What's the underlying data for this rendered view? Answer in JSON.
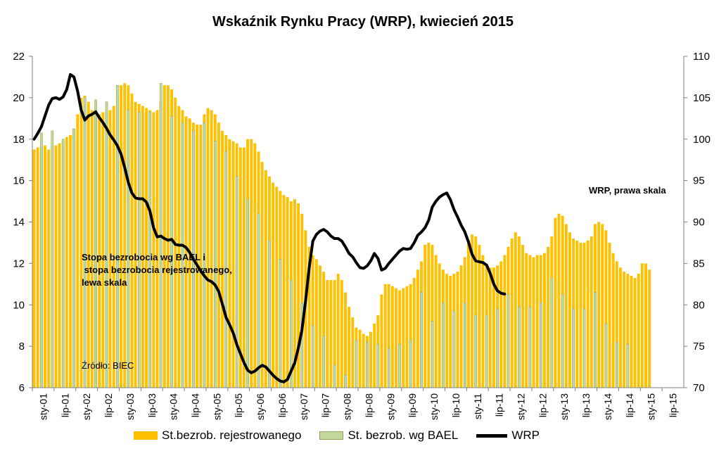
{
  "chart_data": {
    "type": "bar",
    "title": "Wskaźnik Rynku Pracy (WRP), kwiecień 2015",
    "x_tick_labels": [
      "sty-01",
      "lip-01",
      "sty-02",
      "lip-02",
      "sty-03",
      "lip-03",
      "sty-04",
      "lip-04",
      "sty-05",
      "lip-05",
      "sty-06",
      "lip-06",
      "sty-07",
      "lip-07",
      "sty-08",
      "lip-08",
      "sty-09",
      "lip-09",
      "sty-10",
      "lip-10",
      "sty-11",
      "lip-11",
      "sty-12",
      "lip-12",
      "sty-13",
      "lip-13",
      "sty-14",
      "lip-14",
      "sty-15",
      "lip-15"
    ],
    "y_left": {
      "min": 6,
      "max": 22,
      "ticks": [
        6,
        8,
        10,
        12,
        14,
        16,
        18,
        20,
        22
      ]
    },
    "y_right": {
      "min": 70,
      "max": 110,
      "ticks": [
        70,
        75,
        80,
        85,
        90,
        95,
        100,
        105,
        110
      ]
    },
    "series": [
      {
        "name": "St.bezrob. rejestrowanego",
        "kind": "bar",
        "axis": "left",
        "color": "#FFC000",
        "frequency": "monthly",
        "start": "sty-01",
        "values": [
          17.5,
          17.6,
          17.7,
          17.7,
          17.5,
          17.6,
          17.7,
          17.8,
          17.9,
          18.1,
          18.2,
          18.5,
          19.2,
          20.0,
          20.1,
          19.8,
          19.4,
          19.2,
          19.2,
          19.3,
          19.3,
          19.4,
          19.6,
          20.0,
          20.6,
          20.7,
          20.6,
          20.2,
          19.8,
          19.7,
          19.6,
          19.5,
          19.4,
          19.3,
          19.4,
          19.8,
          20.6,
          20.6,
          20.4,
          20.0,
          19.6,
          19.4,
          19.1,
          19.0,
          18.8,
          18.7,
          18.7,
          19.2,
          19.5,
          19.4,
          19.2,
          18.8,
          18.4,
          18.2,
          18.0,
          17.9,
          17.8,
          17.6,
          17.6,
          18.0,
          18.0,
          17.8,
          17.4,
          16.9,
          16.5,
          16.2,
          15.9,
          15.7,
          15.5,
          15.3,
          15.2,
          15.0,
          15.1,
          14.9,
          14.4,
          13.6,
          12.8,
          12.4,
          12.2,
          11.9,
          11.6,
          11.2,
          11.2,
          11.2,
          11.5,
          11.2,
          10.6,
          9.9,
          9.4,
          8.9,
          8.8,
          8.6,
          8.5,
          8.7,
          9.1,
          9.5,
          10.5,
          11.0,
          11.0,
          10.9,
          10.8,
          10.7,
          10.8,
          10.9,
          11.0,
          11.3,
          11.7,
          12.1,
          12.9,
          13.0,
          12.9,
          12.4,
          12.0,
          11.7,
          11.5,
          11.4,
          11.5,
          11.6,
          11.9,
          12.3,
          13.1,
          13.4,
          13.3,
          12.9,
          12.4,
          12.0,
          11.8,
          11.8,
          11.9,
          12.1,
          12.4,
          12.8,
          13.2,
          13.5,
          13.3,
          12.9,
          12.5,
          12.4,
          12.3,
          12.4,
          12.4,
          12.5,
          12.8,
          13.3,
          14.2,
          14.4,
          14.3,
          13.9,
          13.5,
          13.2,
          13.1,
          13.0,
          13.0,
          13.1,
          13.3,
          13.9,
          14.0,
          13.9,
          13.6,
          13.0,
          12.5,
          12.1,
          11.8,
          11.6,
          11.5,
          11.4,
          11.3,
          11.5,
          12.0,
          12.0,
          11.7
        ]
      },
      {
        "name": "St. bezrob. wg BAEL",
        "kind": "bar",
        "axis": "left",
        "color": "#C3D69B",
        "frequency": "quarterly",
        "start": "sty-01",
        "values": [
          18.3,
          18.4,
          18.0,
          18.5,
          20.0,
          19.9,
          19.8,
          20.6,
          19.4,
          19.3,
          19.3,
          20.7,
          19.1,
          18.8,
          18.4,
          18.8,
          17.9,
          17.4,
          16.2,
          15.1,
          14.4,
          13.1,
          12.2,
          11.2,
          10.1,
          9.0,
          8.5,
          7.1,
          6.6,
          8.3,
          8.2,
          8.1,
          7.9,
          8.1,
          8.3,
          10.6,
          9.2,
          10.1,
          9.7,
          10.1,
          9.5,
          9.5,
          9.8,
          10.5,
          9.9,
          9.9,
          10.1,
          11.3,
          10.5,
          9.8,
          9.8,
          10.6,
          9.1,
          8.2,
          8.1
        ]
      },
      {
        "name": "WRP",
        "kind": "line",
        "axis": "right",
        "color": "#000000",
        "frequency": "monthly",
        "start": "sty-01",
        "values": [
          100.0,
          100.7,
          101.5,
          102.8,
          104.1,
          104.9,
          105.0,
          104.8,
          105.1,
          106.0,
          107.8,
          107.5,
          105.8,
          103.5,
          102.3,
          102.8,
          103.0,
          103.3,
          102.6,
          102.0,
          101.3,
          100.5,
          99.9,
          99.2,
          98.2,
          96.6,
          94.8,
          93.5,
          92.9,
          92.8,
          92.8,
          92.4,
          91.3,
          89.3,
          88.2,
          88.3,
          88.0,
          87.8,
          87.9,
          87.3,
          87.2,
          87.2,
          86.9,
          86.3,
          85.5,
          84.8,
          84.1,
          83.5,
          83.0,
          82.8,
          82.4,
          81.6,
          80.1,
          78.5,
          77.6,
          76.6,
          75.2,
          74.1,
          73.0,
          72.1,
          71.8,
          72.0,
          72.4,
          72.7,
          72.5,
          72.0,
          71.5,
          71.1,
          70.8,
          70.7,
          71.0,
          72.0,
          73.0,
          74.8,
          77.0,
          80.5,
          84.5,
          87.7,
          88.5,
          88.9,
          89.1,
          88.8,
          88.3,
          88.0,
          88.0,
          87.7,
          87.0,
          86.2,
          85.8,
          85.1,
          84.5,
          84.4,
          84.7,
          85.3,
          86.2,
          85.6,
          84.2,
          84.4,
          85.0,
          85.5,
          86.0,
          86.5,
          86.8,
          86.7,
          86.8,
          87.5,
          88.4,
          88.8,
          89.3,
          90.2,
          91.8,
          92.5,
          93.0,
          93.3,
          93.5,
          92.7,
          91.5,
          90.6,
          89.6,
          88.8,
          87.6,
          86.1,
          85.3,
          85.2,
          85.1,
          84.8,
          83.8,
          82.5,
          81.7,
          81.4,
          81.3
        ]
      }
    ],
    "legend": {
      "position": "bottom",
      "entries": [
        "St.bezrob. rejestrowanego",
        "St. bezrob. wg BAEL",
        "WRP"
      ]
    },
    "annotations": [
      {
        "lines": [
          "Stopa bezrobocia wg BAEL i",
          " stopa bezrobocia rejestrowanego,",
          "lewa skala"
        ]
      },
      {
        "lines": [
          "WRP, prawa skala"
        ]
      },
      {
        "lines": [
          "Źródło: BIEC"
        ]
      }
    ],
    "grid": false
  }
}
